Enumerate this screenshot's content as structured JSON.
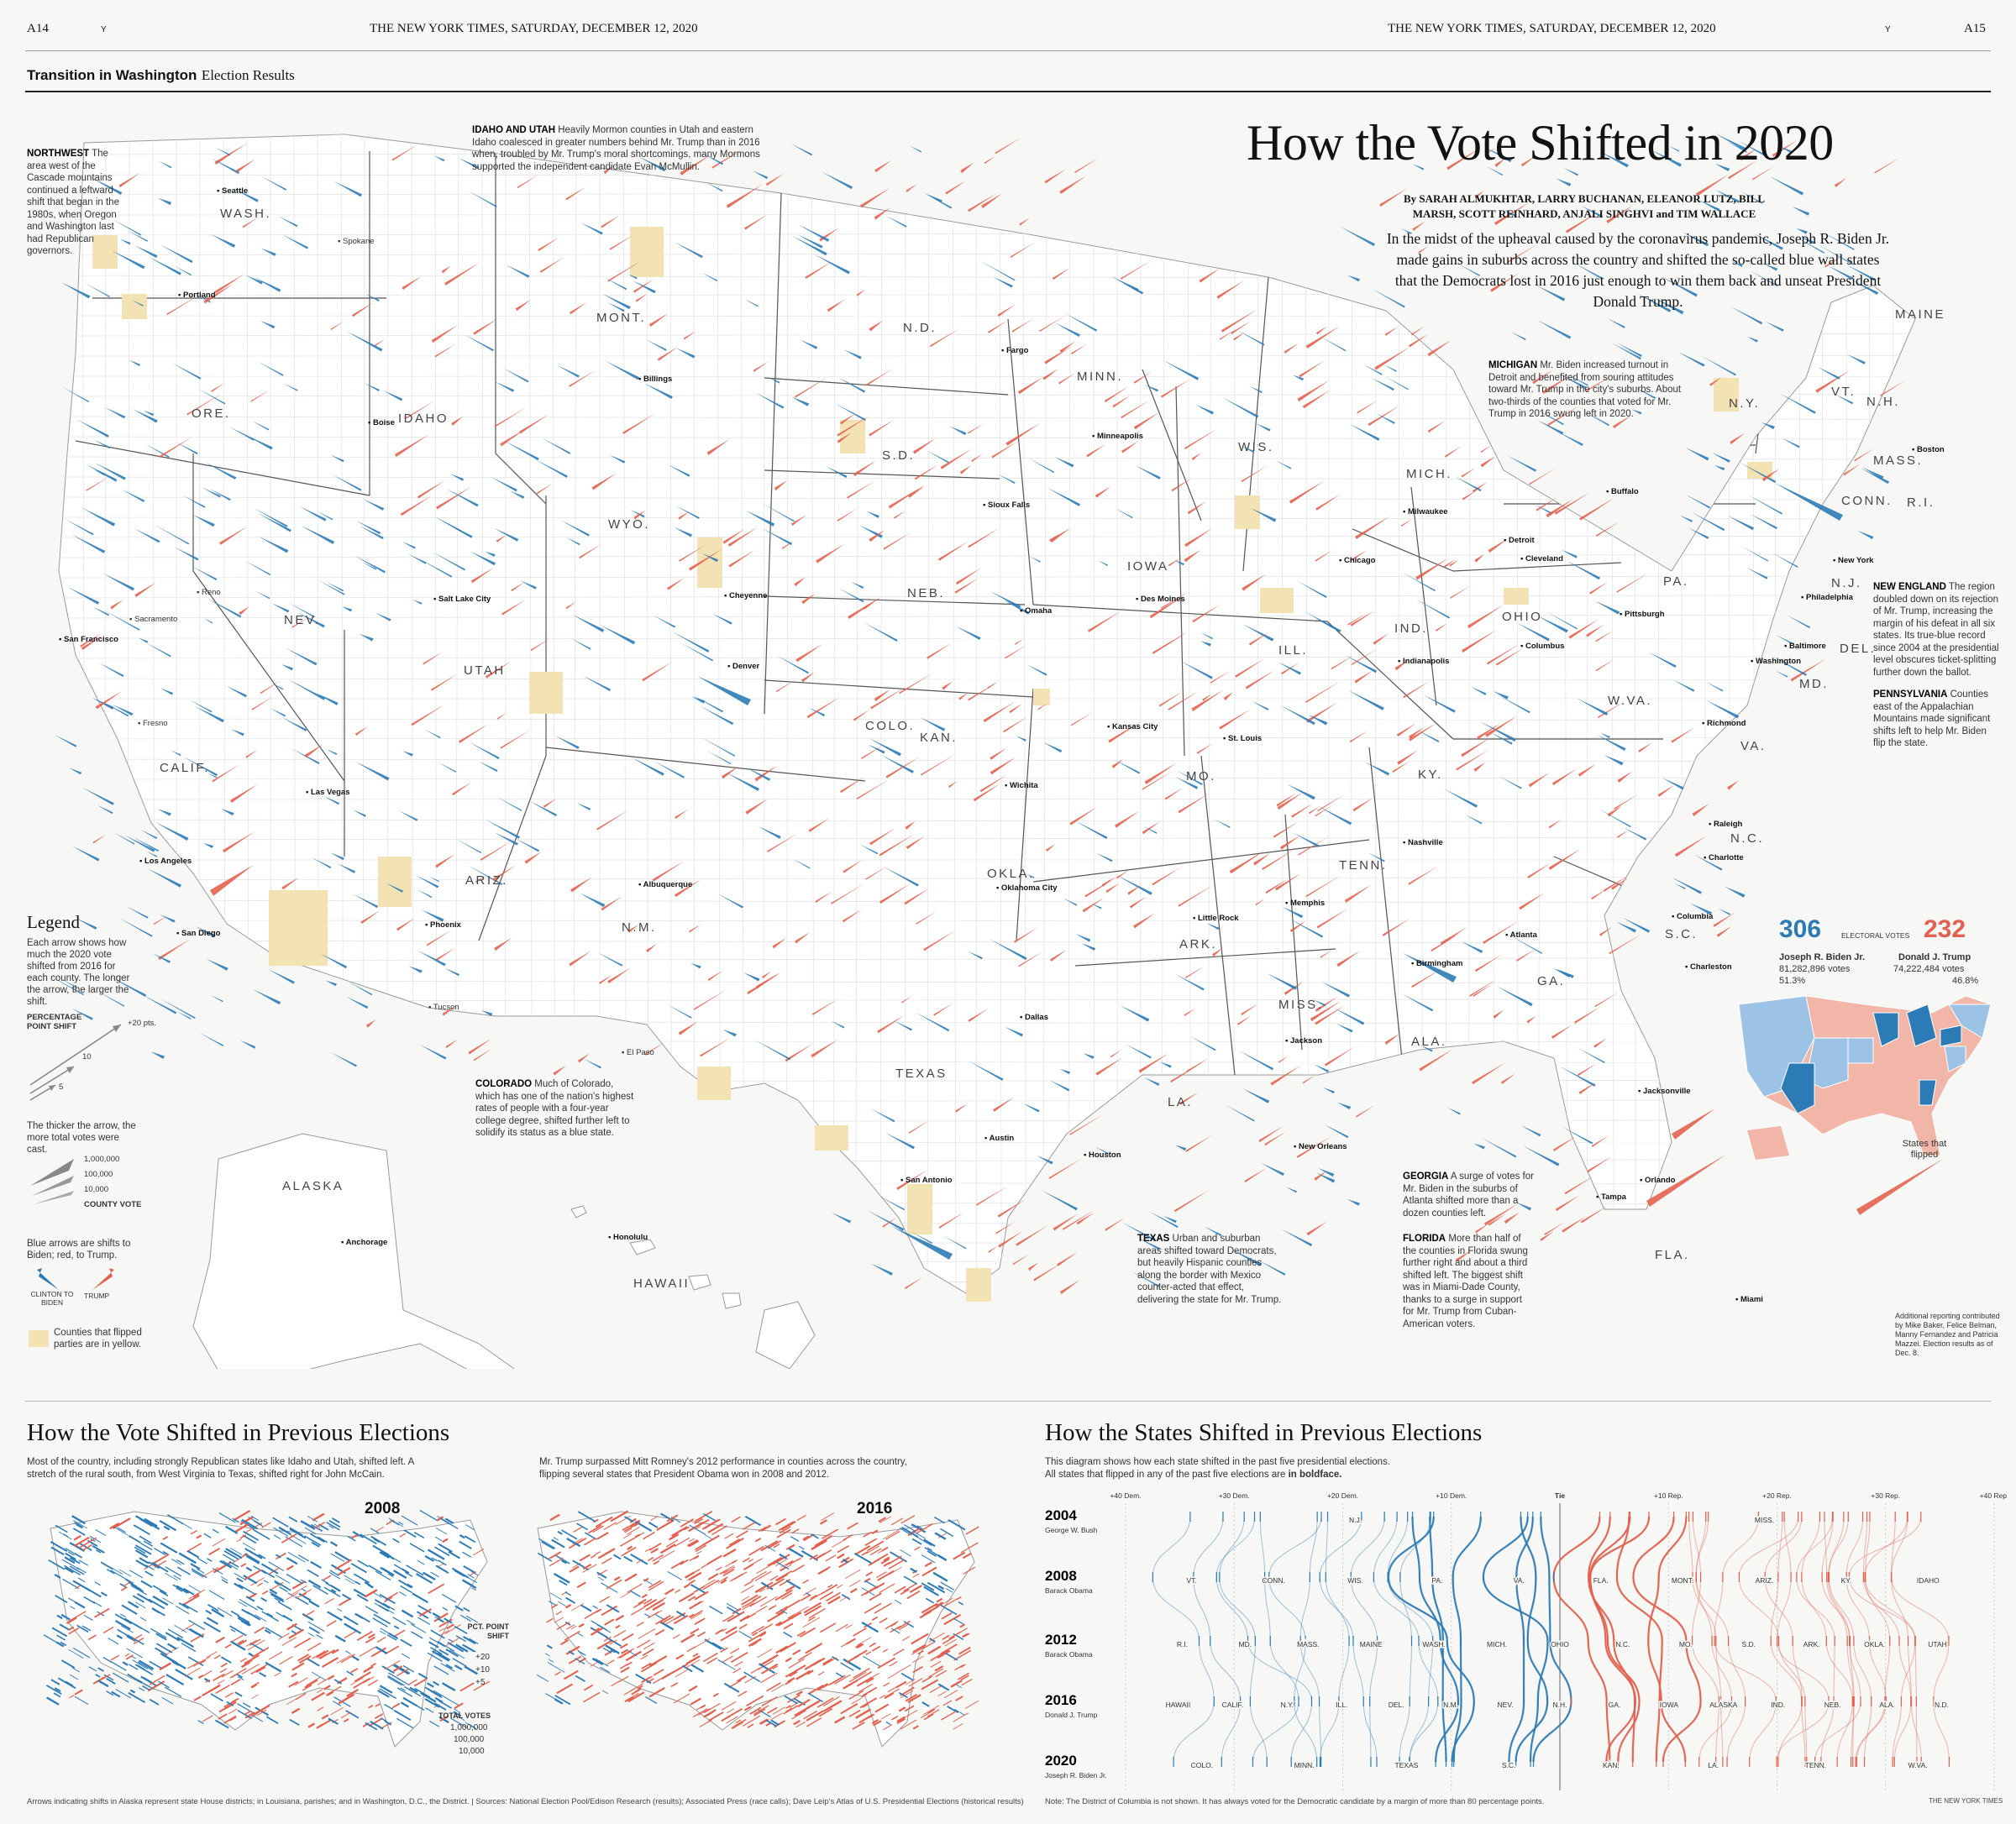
{
  "header": {
    "page_left": "A14",
    "page_right": "A15",
    "dateline_left": "THE NEW YORK TIMES, SATURDAY, DECEMBER 12, 2020",
    "dateline_right": "THE NEW YORK TIMES, SATURDAY, DECEMBER 12, 2020",
    "marker": "Y",
    "section_bold": "Transition in Washington",
    "section_rest": "Election Results"
  },
  "story": {
    "title": "How the Vote Shifted in 2020",
    "byline": "By SARAH ALMUKHTAR, LARRY BUCHANAN, ELEANOR LUTZ, BILL MARSH, SCOTT REINHARD, ANJALI SINGHVI and TIM WALLACE",
    "dek": "In the midst of the upheaval caused by the coronavirus pandemic, Joseph R. Biden Jr. made gains in suburbs across the country and shifted the so-called blue wall states that the Democrats lost in 2016 just enough to win them back and unseat President Donald Trump."
  },
  "annotations": {
    "northwest_head": "NORTHWEST",
    "northwest": "The area west of the Cascade mountains continued a leftward shift that began in the 1980s, when Oregon and Washington last had Republican governors.",
    "idaho_head": "IDAHO AND UTAH",
    "idaho": "Heavily Mormon counties in Utah and eastern Idaho coalesced in greater numbers behind Mr. Trump than in 2016 when, troubled by Mr. Trump's moral shortcomings, many Mormons supported the independent candidate Evan McMullin.",
    "michigan_head": "MICHIGAN",
    "michigan": "Mr. Biden increased turnout in Detroit and benefited from souring attitudes toward Mr. Trump in the city's suburbs. About two-thirds of the counties that voted for Mr. Trump in 2016 swung left in 2020.",
    "newengland_head": "NEW ENGLAND",
    "newengland": "The region doubled down on its rejection of Mr. Trump, increasing the margin of his defeat in all six states. Its true-blue record since 2004 at the presidential level obscures ticket-splitting further down the ballot.",
    "pennsylvania_head": "PENNSYLVANIA",
    "pennsylvania": "Counties east of the Appalachian Mountains made significant shifts left to help Mr. Biden flip the state.",
    "colorado_head": "COLORADO",
    "colorado": "Much of Colorado, which has one of the nation's highest rates of people with a four-year college degree, shifted further left to solidify its status as a blue state.",
    "texas_head": "TEXAS",
    "texas": "Urban and suburban areas shifted toward Democrats, but heavily Hispanic counties along the border with Mexico counter-acted that effect, delivering the state for Mr. Trump.",
    "georgia_head": "GEORGIA",
    "georgia": "A surge of votes for Mr. Biden in the suburbs of Atlanta shifted more than a dozen counties left.",
    "florida_head": "FLORIDA",
    "florida": "More than half of the counties in Florida swung further right and about a third shifted left. The biggest shift was in Miami-Dade County, thanks to a surge in support for Mr. Trump from Cuban-American voters.",
    "credits": "Additional reporting contributed by Mike Baker, Felice Belman, Manny Fernandez and Patricia Mazzei. Election results as of Dec. 8."
  },
  "legend": {
    "title": "Legend",
    "intro": "Each arrow shows how much the 2020 vote shifted from 2016 for each county. The longer the arrow, the larger the shift.",
    "shift_head": "PERCENTAGE POINT SHIFT",
    "shift_values": [
      "+20 pts.",
      "10",
      "5"
    ],
    "thick_text": "The thicker the arrow, the more total votes were cast.",
    "vote_values": [
      "1,000,000",
      "100,000",
      "10,000"
    ],
    "vote_head": "COUNTY VOTE",
    "color_text": "Blue arrows are shifts to Biden; red, to Trump.",
    "clinton_label": "CLINTON TO BIDEN",
    "trump_label": "TRUMP",
    "flipped_text": "Counties that flipped parties are in yellow.",
    "colors": {
      "blue": "#2c7bb6",
      "red": "#e4604e",
      "yellow": "#f3e2b3"
    }
  },
  "electoral": {
    "biden_ev": "306",
    "trump_ev": "232",
    "ev_label": "ELECTORAL VOTES",
    "biden_name": "Joseph R. Biden Jr.",
    "biden_votes": "81,282,896 votes",
    "biden_pct": "51.3%",
    "trump_name": "Donald J. Trump",
    "trump_votes": "74,222,484 votes",
    "trump_pct": "46.8%",
    "flipped_label": "States that flipped"
  },
  "states": [
    {
      "name": "WASH.",
      "icon": "state-label"
    },
    {
      "name": "ORE.",
      "icon": "state-label"
    },
    {
      "name": "CALIF.",
      "icon": "state-label"
    },
    {
      "name": "NEV.",
      "icon": "state-label"
    },
    {
      "name": "IDAHO",
      "icon": "state-label"
    },
    {
      "name": "MONT.",
      "icon": "state-label"
    },
    {
      "name": "WYO.",
      "icon": "state-label"
    },
    {
      "name": "UTAH",
      "icon": "state-label"
    },
    {
      "name": "COLO.",
      "icon": "state-label"
    },
    {
      "name": "ARIZ.",
      "icon": "state-label"
    },
    {
      "name": "N.M.",
      "icon": "state-label"
    },
    {
      "name": "N.D.",
      "icon": "state-label"
    },
    {
      "name": "S.D.",
      "icon": "state-label"
    },
    {
      "name": "NEB.",
      "icon": "state-label"
    },
    {
      "name": "KAN.",
      "icon": "state-label"
    },
    {
      "name": "OKLA.",
      "icon": "state-label"
    },
    {
      "name": "TEXAS",
      "icon": "state-label"
    },
    {
      "name": "MINN.",
      "icon": "state-label"
    },
    {
      "name": "IOWA",
      "icon": "state-label"
    },
    {
      "name": "MO.",
      "icon": "state-label"
    },
    {
      "name": "ARK.",
      "icon": "state-label"
    },
    {
      "name": "LA.",
      "icon": "state-label"
    },
    {
      "name": "WIS.",
      "icon": "state-label"
    },
    {
      "name": "ILL.",
      "icon": "state-label"
    },
    {
      "name": "MICH.",
      "icon": "state-label"
    },
    {
      "name": "IND.",
      "icon": "state-label"
    },
    {
      "name": "OHIO",
      "icon": "state-label"
    },
    {
      "name": "KY.",
      "icon": "state-label"
    },
    {
      "name": "TENN.",
      "icon": "state-label"
    },
    {
      "name": "MISS.",
      "icon": "state-label"
    },
    {
      "name": "ALA.",
      "icon": "state-label"
    },
    {
      "name": "GA.",
      "icon": "state-label"
    },
    {
      "name": "FLA.",
      "icon": "state-label"
    },
    {
      "name": "S.C.",
      "icon": "state-label"
    },
    {
      "name": "N.C.",
      "icon": "state-label"
    },
    {
      "name": "VA.",
      "icon": "state-label"
    },
    {
      "name": "W.VA.",
      "icon": "state-label"
    },
    {
      "name": "PA.",
      "icon": "state-label"
    },
    {
      "name": "N.Y.",
      "icon": "state-label"
    },
    {
      "name": "MAINE",
      "icon": "state-label"
    },
    {
      "name": "VT.",
      "icon": "state-label"
    },
    {
      "name": "N.H.",
      "icon": "state-label"
    },
    {
      "name": "MASS.",
      "icon": "state-label"
    },
    {
      "name": "CONN.",
      "icon": "state-label"
    },
    {
      "name": "R.I.",
      "icon": "state-label"
    },
    {
      "name": "N.J.",
      "icon": "state-label"
    },
    {
      "name": "DEL.",
      "icon": "state-label"
    },
    {
      "name": "MD.",
      "icon": "state-label"
    },
    {
      "name": "ALASKA",
      "icon": "state-label"
    },
    {
      "name": "HAWAII",
      "icon": "state-label"
    }
  ],
  "cities": [
    {
      "name": "Seattle",
      "bold": true
    },
    {
      "name": "Portland",
      "bold": true
    },
    {
      "name": "Spokane",
      "bold": false
    },
    {
      "name": "Boise",
      "bold": true
    },
    {
      "name": "Salt Lake City",
      "bold": true
    },
    {
      "name": "Reno",
      "bold": false
    },
    {
      "name": "San Francisco",
      "bold": true
    },
    {
      "name": "Sacramento",
      "bold": false
    },
    {
      "name": "Fresno",
      "bold": false
    },
    {
      "name": "Las Vegas",
      "bold": true
    },
    {
      "name": "Los Angeles",
      "bold": true
    },
    {
      "name": "San Diego",
      "bold": true
    },
    {
      "name": "Phoenix",
      "bold": true
    },
    {
      "name": "Tucson",
      "bold": false
    },
    {
      "name": "Albuquerque",
      "bold": true
    },
    {
      "name": "Denver",
      "bold": true
    },
    {
      "name": "Cheyenne",
      "bold": true
    },
    {
      "name": "Billings",
      "bold": true
    },
    {
      "name": "Fargo",
      "bold": true
    },
    {
      "name": "Minneapolis",
      "bold": true
    },
    {
      "name": "Sioux Falls",
      "bold": true
    },
    {
      "name": "Omaha",
      "bold": true
    },
    {
      "name": "Des Moines",
      "bold": true
    },
    {
      "name": "Kansas City",
      "bold": true
    },
    {
      "name": "Wichita",
      "bold": true
    },
    {
      "name": "Oklahoma City",
      "bold": true
    },
    {
      "name": "Dallas",
      "bold": true
    },
    {
      "name": "Austin",
      "bold": true
    },
    {
      "name": "Houston",
      "bold": true
    },
    {
      "name": "San Antonio",
      "bold": true
    },
    {
      "name": "El Paso",
      "bold": false
    },
    {
      "name": "Chicago",
      "bold": true
    },
    {
      "name": "Milwaukee",
      "bold": true
    },
    {
      "name": "St. Louis",
      "bold": true
    },
    {
      "name": "Memphis",
      "bold": true
    },
    {
      "name": "Nashville",
      "bold": true
    },
    {
      "name": "Little Rock",
      "bold": true
    },
    {
      "name": "Jackson",
      "bold": true
    },
    {
      "name": "New Orleans",
      "bold": true
    },
    {
      "name": "Birmingham",
      "bold": true
    },
    {
      "name": "Atlanta",
      "bold": true
    },
    {
      "name": "Detroit",
      "bold": true
    },
    {
      "name": "Cleveland",
      "bold": true
    },
    {
      "name": "Columbus",
      "bold": true
    },
    {
      "name": "Indianapolis",
      "bold": true
    },
    {
      "name": "Pittsburgh",
      "bold": true
    },
    {
      "name": "Philadelphia",
      "bold": true
    },
    {
      "name": "New York",
      "bold": true
    },
    {
      "name": "Boston",
      "bold": true
    },
    {
      "name": "Buffalo",
      "bold": true
    },
    {
      "name": "Baltimore",
      "bold": true
    },
    {
      "name": "Washington",
      "bold": true
    },
    {
      "name": "Richmond",
      "bold": true
    },
    {
      "name": "Raleigh",
      "bold": true
    },
    {
      "name": "Charlotte",
      "bold": true
    },
    {
      "name": "Columbia",
      "bold": true
    },
    {
      "name": "Charleston",
      "bold": true
    },
    {
      "name": "Jacksonville",
      "bold": true
    },
    {
      "name": "Orlando",
      "bold": true
    },
    {
      "name": "Tampa",
      "bold": true
    },
    {
      "name": "Miami",
      "bold": true
    },
    {
      "name": "Anchorage",
      "bold": true
    },
    {
      "name": "Honolulu",
      "bold": true
    }
  ],
  "previous_elections": {
    "title": "How the Vote Shifted in Previous Elections",
    "intro_left": "Most of the country, including strongly Republican states like Idaho and Utah, shifted left. A stretch of the rural south, from West Virginia to Texas, shifted right for John McCain.",
    "intro_right": "Mr. Trump surpassed Mitt Romney's 2012 performance in counties across the country, flipping several states that President Obama won in 2008 and 2012.",
    "year_left": "2008",
    "year_right": "2016",
    "pct_head": "PCT. POINT SHIFT",
    "pct_values": [
      "+20",
      "+10",
      "+5"
    ],
    "votes_head": "TOTAL VOTES",
    "votes_values": [
      "1,000,000",
      "100,000",
      "10,000"
    ]
  },
  "states_shift": {
    "title": "How the States Shifted in Previous Elections",
    "intro_1": "This diagram shows how each state shifted in the past five presidential elections.",
    "intro_2": "All states that flipped in any of the past five elections are",
    "intro_bold": "in boldface.",
    "axis": [
      "+40 Dem.",
      "+30 Dem.",
      "+20 Dem.",
      "+10 Dem.",
      "Tie",
      "+10 Rep.",
      "+20 Rep.",
      "+30 Rep.",
      "+40 Rep."
    ],
    "rows": [
      {
        "year": "2004",
        "winner": "George W. Bush"
      },
      {
        "year": "2008",
        "winner": "Barack Obama"
      },
      {
        "year": "2012",
        "winner": "Barack Obama"
      },
      {
        "year": "2016",
        "winner": "Donald J. Trump"
      },
      {
        "year": "2020",
        "winner": "Joseph R. Biden Jr."
      }
    ],
    "row_labels": {
      "r2004": [
        "N.J.",
        "MISS."
      ],
      "r2008": [
        "VT.",
        "CONN.",
        "WIS.",
        "PA.",
        "VA.",
        "FLA.",
        "MONT.",
        "ARIZ.",
        "KY.",
        "IDAHO"
      ],
      "r2012": [
        "R.I.",
        "MD.",
        "MASS.",
        "MAINE",
        "WASH.",
        "MICH.",
        "OHIO",
        "N.C.",
        "MO.",
        "S.D.",
        "ARK.",
        "OKLA.",
        "UTAH"
      ],
      "r2016": [
        "HAWAII",
        "CALIF.",
        "N.Y.",
        "ILL.",
        "DEL.",
        "N.M.",
        "NEV.",
        "N.H.",
        "GA.",
        "IOWA",
        "ALASKA",
        "IND.",
        "NEB.",
        "ALA.",
        "N.D."
      ],
      "r2020": [
        "COLO.",
        "MINN.",
        "TEXAS",
        "S.C.",
        "KAN.",
        "LA.",
        "TENN.",
        "W.VA."
      ]
    },
    "note": "Note: The District of Columbia is not shown. It has always voted for the Democratic candidate by a margin of more than 80 percentage points.",
    "logo": "THE NEW YORK TIMES"
  },
  "sources": "Arrows indicating shifts in Alaska represent state House districts; in Louisiana, parishes; and in Washington, D.C., the District. | Sources: National Election Pool/Edison Research (results); Associated Press (race calls); Dave Leip's Atlas of U.S. Presidential Elections (historical results)"
}
